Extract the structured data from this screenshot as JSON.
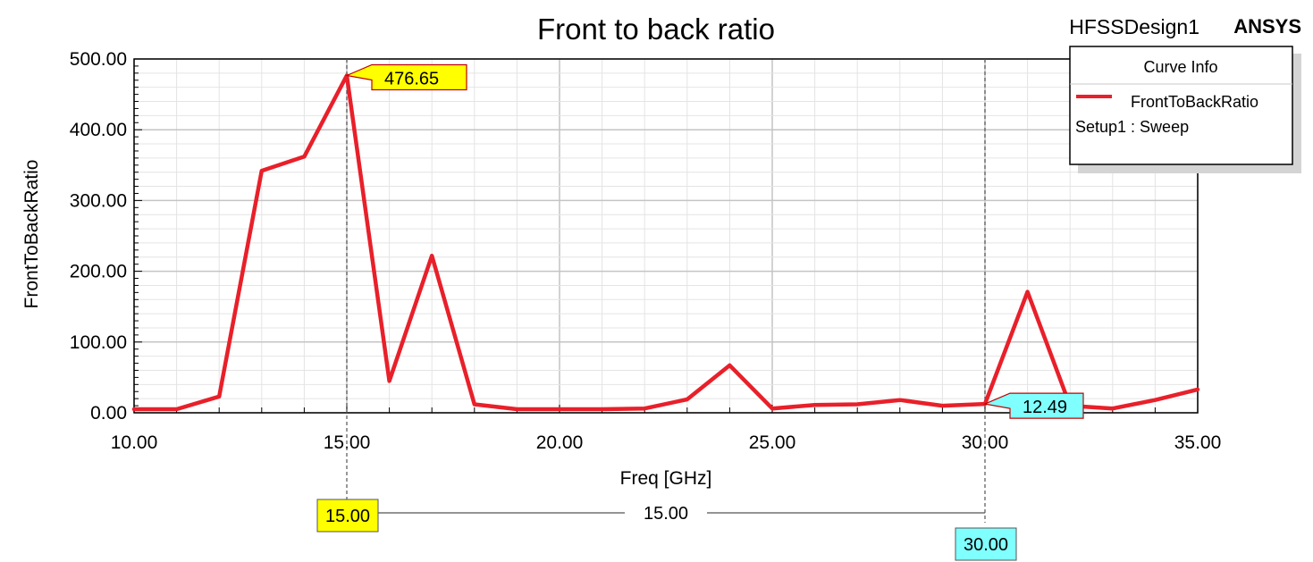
{
  "header": {
    "title": "Front to back ratio",
    "design_name": "HFSSDesign1",
    "brand": "ANSYS"
  },
  "legend": {
    "title": "Curve Info",
    "entry": "FrontToBackRatio",
    "setup": "Setup1 : Sweep"
  },
  "markers": {
    "m1_value": "476.65",
    "m2_value": "12.49",
    "x1_label": "15.00",
    "x2_label": "30.00",
    "delta_label": "15.00"
  },
  "colors": {
    "curve": "#e8202a",
    "marker1": "#ffff00",
    "marker2": "#80ffff"
  },
  "chart_data": {
    "type": "line",
    "title": "Front to back ratio",
    "xlabel": "Freq [GHz]",
    "ylabel": "FrontToBackRatio",
    "xlim": [
      10,
      35
    ],
    "ylim": [
      0,
      500
    ],
    "x_ticks": [
      "10.00",
      "15.00",
      "20.00",
      "25.00",
      "30.00",
      "35.00"
    ],
    "y_ticks": [
      "0.00",
      "100.00",
      "200.00",
      "300.00",
      "400.00",
      "500.00"
    ],
    "grid": true,
    "legend_position": "top-right",
    "series": [
      {
        "name": "FrontToBackRatio",
        "x": [
          10,
          11,
          12,
          13,
          14,
          15,
          16,
          17,
          18,
          19,
          20,
          21,
          22,
          23,
          24,
          25,
          26,
          27,
          28,
          29,
          30,
          31,
          32,
          33,
          34,
          35
        ],
        "y": [
          5,
          5,
          23,
          342,
          362,
          476.65,
          45,
          222,
          12,
          5,
          5,
          5,
          6,
          19,
          67,
          6,
          11,
          12,
          18,
          10,
          12.49,
          171,
          10,
          6,
          18,
          33
        ]
      }
    ],
    "markers": [
      {
        "x": 15,
        "y": 476.65
      },
      {
        "x": 30,
        "y": 12.49
      }
    ],
    "delta_x": 15
  }
}
